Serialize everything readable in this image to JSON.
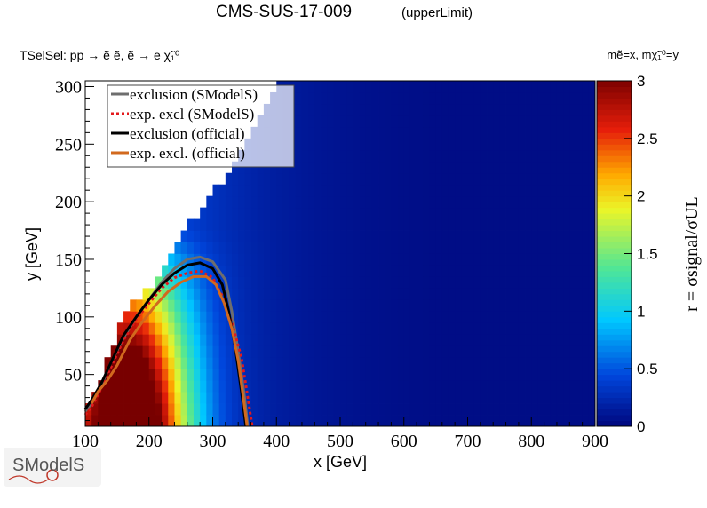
{
  "header": {
    "title": "CMS-SUS-17-009",
    "subtitle": "(upperLimit)",
    "topology": "TSelSel: pp → ẽ ẽ, ẽ → e χ̃₁⁰",
    "mass_notation": "mẽ=x, mχ̃₁⁰=y"
  },
  "logo": {
    "text": "SModelS"
  },
  "chart_data": {
    "type": "heatmap",
    "xlabel": "x [GeV]",
    "ylabel": "y [GeV]",
    "zlabel": "r = σsignal/σUL",
    "xlim": [
      100,
      900
    ],
    "ylim": [
      5,
      305
    ],
    "zlim": [
      0,
      3
    ],
    "x_ticks": [
      100,
      200,
      300,
      400,
      500,
      600,
      700,
      800,
      900
    ],
    "y_ticks": [
      50,
      100,
      150,
      200,
      250,
      300
    ],
    "z_ticks": [
      0,
      0.5,
      1,
      1.5,
      2,
      2.5,
      3
    ],
    "x_tick_labels": [
      "100",
      "200",
      "300",
      "400",
      "500",
      "600",
      "700",
      "800",
      "900"
    ],
    "y_tick_labels": [
      "50",
      "100",
      "150",
      "200",
      "250",
      "300"
    ],
    "z_tick_labels": [
      "0",
      "0.5",
      "1",
      "1.5",
      "2",
      "2.5",
      "3"
    ],
    "colormap": "rainbow (blue → cyan → green → yellow → orange → red → dark red)",
    "grid_step": 10,
    "region_edge_y_at_x": [
      [
        100,
        22
      ],
      [
        110,
        30
      ],
      [
        130,
        55
      ],
      [
        150,
        88
      ],
      [
        170,
        110
      ],
      [
        190,
        122
      ],
      [
        210,
        132
      ],
      [
        230,
        150
      ],
      [
        250,
        165
      ],
      [
        270,
        185
      ],
      [
        290,
        197
      ],
      [
        310,
        215
      ],
      [
        330,
        230
      ],
      [
        360,
        255
      ],
      [
        400,
        305
      ]
    ],
    "legend": {
      "position": "top-left",
      "entries": [
        {
          "label": "exclusion (SModelS)",
          "color": "#6e6e6e",
          "style": "solid"
        },
        {
          "label": "exp. excl (SModelS)",
          "color": "#e31a1c",
          "style": "dotted"
        },
        {
          "label": "exclusion (official)",
          "color": "#000000",
          "style": "solid"
        },
        {
          "label": "exp. excl. (official)",
          "color": "#d2691e",
          "style": "solid"
        }
      ]
    },
    "series": [
      {
        "name": "exclusion (SModelS)",
        "color": "#6e6e6e",
        "style": "solid",
        "x": [
          100,
          110,
          125,
          140,
          160,
          180,
          200,
          220,
          240,
          260,
          280,
          300,
          320,
          330,
          340,
          350,
          355
        ],
        "y": [
          18,
          25,
          40,
          60,
          82,
          100,
          115,
          130,
          142,
          150,
          152,
          148,
          132,
          105,
          70,
          30,
          5
        ]
      },
      {
        "name": "exp. excl (SModelS)",
        "color": "#e31a1c",
        "style": "dotted",
        "x": [
          100,
          110,
          125,
          140,
          160,
          180,
          200,
          220,
          240,
          260,
          280,
          300,
          315,
          330,
          345,
          355,
          362
        ],
        "y": [
          15,
          22,
          38,
          56,
          80,
          98,
          112,
          125,
          134,
          138,
          140,
          134,
          118,
          95,
          65,
          30,
          5
        ]
      },
      {
        "name": "exclusion (official)",
        "color": "#000000",
        "style": "solid",
        "x": [
          100,
          110,
          125,
          140,
          160,
          180,
          200,
          220,
          240,
          260,
          280,
          300,
          315,
          325,
          335,
          345,
          352
        ],
        "y": [
          20,
          28,
          42,
          60,
          84,
          100,
          115,
          128,
          138,
          145,
          147,
          142,
          128,
          105,
          75,
          35,
          5
        ]
      },
      {
        "name": "exp. excl. (official)",
        "color": "#d2691e",
        "style": "solid",
        "x": [
          110,
          120,
          135,
          150,
          170,
          190,
          210,
          230,
          250,
          270,
          290,
          305,
          318,
          330,
          340,
          348,
          354
        ],
        "y": [
          25,
          35,
          45,
          58,
          80,
          96,
          110,
          122,
          130,
          135,
          135,
          128,
          112,
          90,
          62,
          30,
          5
        ]
      }
    ]
  }
}
